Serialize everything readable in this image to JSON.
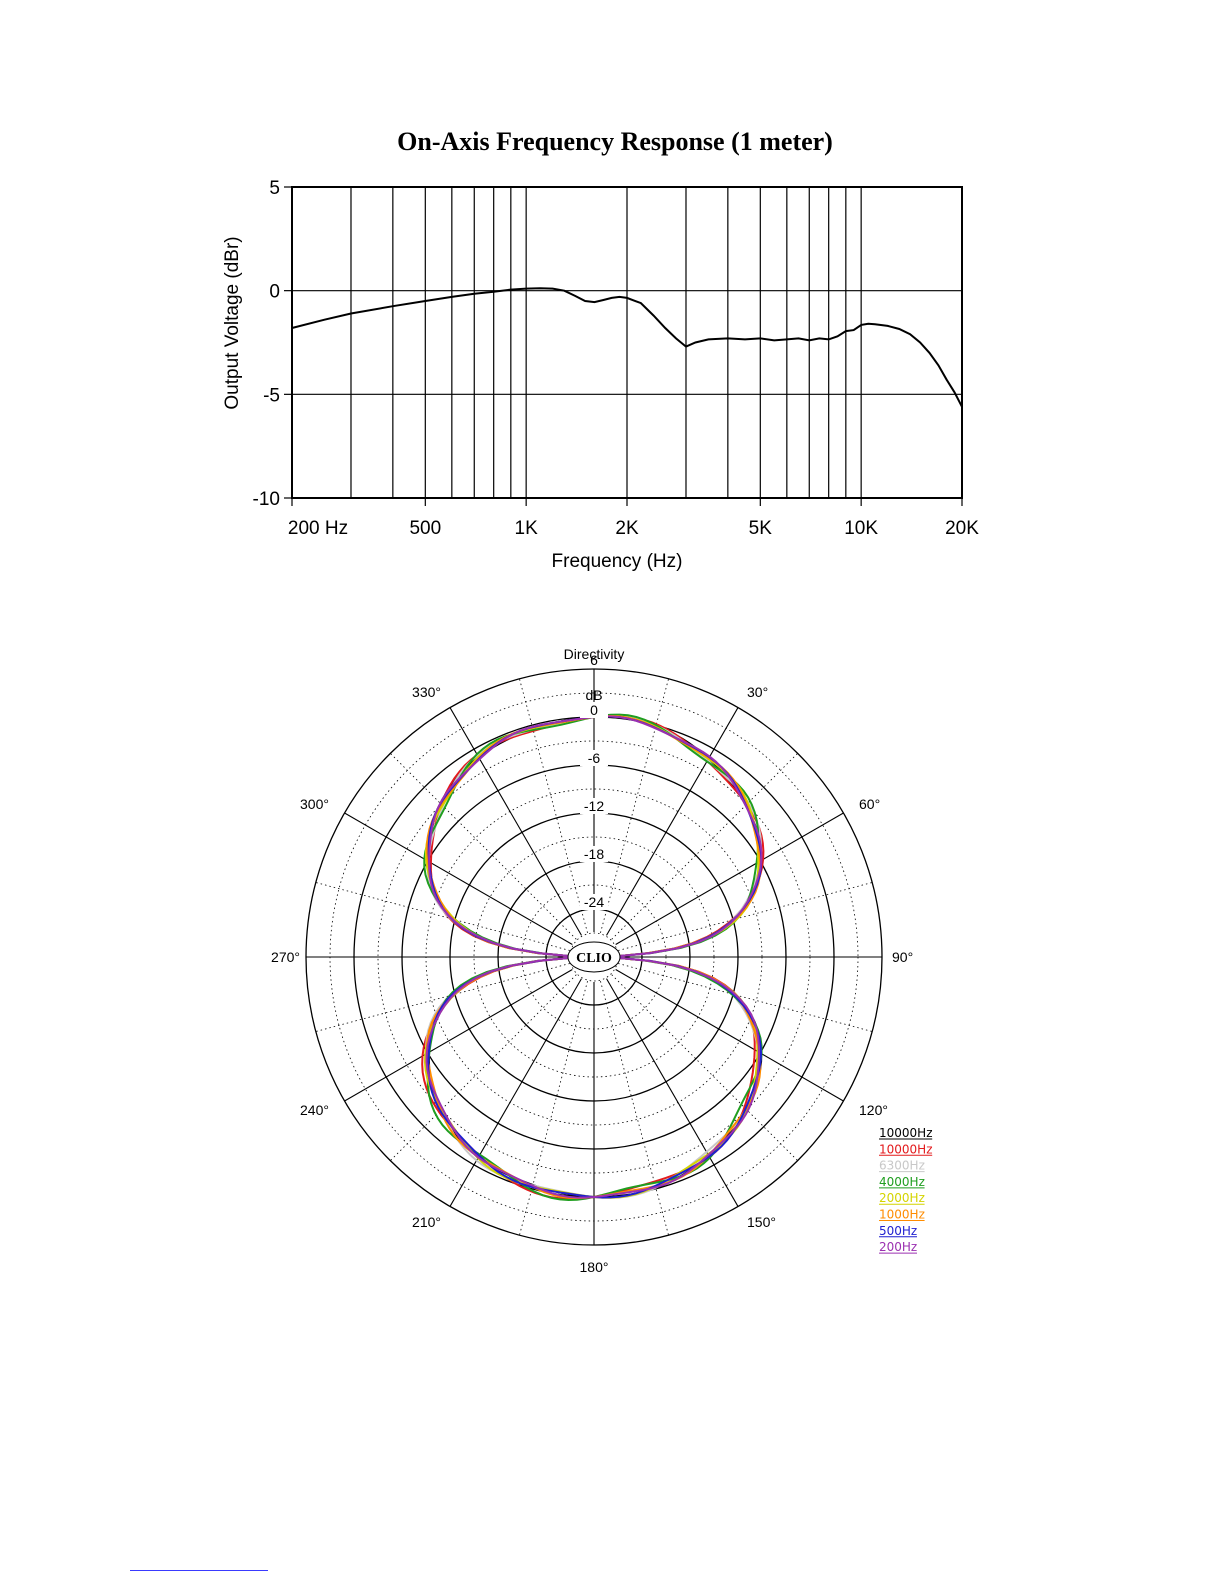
{
  "chart_data": [
    {
      "type": "line",
      "title": "On-Axis Frequency Response (1 meter)",
      "xlabel": "Frequency (Hz)",
      "ylabel": "Output Voltage (dBr)",
      "xscale": "log",
      "xlim": [
        200,
        20000
      ],
      "ylim": [
        -10,
        5
      ],
      "x_ticks": [
        200,
        500,
        1000,
        2000,
        5000,
        10000,
        20000
      ],
      "x_tick_labels": [
        "200 Hz",
        "500",
        "1K",
        "2K",
        "5K",
        "10K",
        "20K"
      ],
      "y_ticks": [
        5,
        0,
        -5,
        -10
      ],
      "y_tick_labels": [
        "5",
        "0",
        "-5",
        "-10"
      ],
      "grid": true,
      "series": [
        {
          "color": "#000000",
          "x": [
            200,
            250,
            300,
            400,
            500,
            600,
            700,
            800,
            900,
            1000,
            1100,
            1200,
            1300,
            1400,
            1500,
            1600,
            1700,
            1800,
            1900,
            2000,
            2200,
            2400,
            2600,
            2800,
            3000,
            3200,
            3500,
            4000,
            4500,
            5000,
            5500,
            6000,
            6500,
            7000,
            7500,
            8000,
            8500,
            9000,
            9500,
            10000,
            10500,
            11000,
            12000,
            13000,
            14000,
            15000,
            16000,
            17000,
            18000,
            19000,
            20000
          ],
          "y": [
            -1.8,
            -1.4,
            -1.1,
            -0.75,
            -0.5,
            -0.3,
            -0.15,
            -0.05,
            0.05,
            0.1,
            0.12,
            0.1,
            0.0,
            -0.25,
            -0.5,
            -0.55,
            -0.45,
            -0.35,
            -0.3,
            -0.35,
            -0.6,
            -1.2,
            -1.8,
            -2.3,
            -2.7,
            -2.5,
            -2.35,
            -2.3,
            -2.35,
            -2.3,
            -2.4,
            -2.35,
            -2.3,
            -2.4,
            -2.3,
            -2.35,
            -2.2,
            -1.95,
            -1.9,
            -1.65,
            -1.6,
            -1.62,
            -1.7,
            -1.85,
            -2.1,
            -2.5,
            -3.0,
            -3.6,
            -4.3,
            -4.9,
            -5.6
          ]
        }
      ]
    },
    {
      "type": "polar",
      "title": "Directivity",
      "unit_label": "dB",
      "center_label": "CLIO",
      "r_ticks": [
        6,
        0,
        -6,
        -12,
        -18,
        -24
      ],
      "r_tick_labels": [
        "6",
        "0",
        "-6",
        "-12",
        "-18",
        "-24"
      ],
      "r_range": [
        -30,
        6
      ],
      "angle_labels": [
        "30°",
        "60°",
        "90°",
        "120°",
        "150°",
        "180°",
        "210°",
        "240°",
        "270°",
        "300°",
        "330°"
      ],
      "pattern": "figure-8",
      "series": [
        {
          "name": "10000Hz",
          "color": "#000000",
          "rear_offset_db": 0.0,
          "ripple_db": 0.2
        },
        {
          "name": "10000Hz",
          "color": "#e31a1c",
          "rear_offset_db": 0.8,
          "ripple_db": 0.5
        },
        {
          "name": "6300Hz",
          "color": "#c8c8c8",
          "rear_offset_db": 0.5,
          "ripple_db": 0.4
        },
        {
          "name": "4000Hz",
          "color": "#1f9e1f",
          "rear_offset_db": 0.7,
          "ripple_db": 0.6
        },
        {
          "name": "2000Hz",
          "color": "#d4d400",
          "rear_offset_db": 0.3,
          "ripple_db": 0.3
        },
        {
          "name": "1000Hz",
          "color": "#ff8c00",
          "rear_offset_db": 0.2,
          "ripple_db": 0.3
        },
        {
          "name": "500Hz",
          "color": "#1f1fd0",
          "rear_offset_db": 0.1,
          "ripple_db": 0.2
        },
        {
          "name": "200Hz",
          "color": "#9b30b0",
          "rear_offset_db": 0.0,
          "ripple_db": 0.2
        }
      ],
      "legend": "bottom-right"
    }
  ]
}
